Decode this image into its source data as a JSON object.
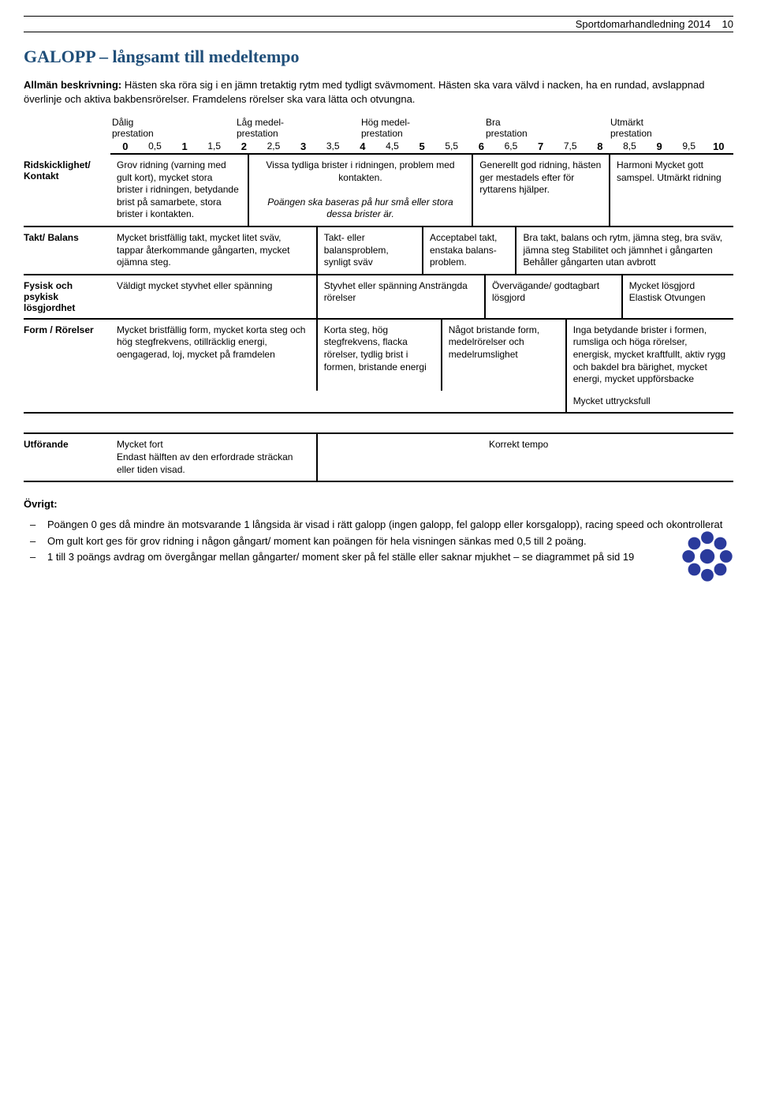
{
  "header": {
    "doc_title": "Sportdomarhandledning 2014",
    "page_num": "10"
  },
  "title": "GALOPP – långsamt till medeltempo",
  "intro": {
    "label": "Allmän beskrivning:",
    "text": " Hästen ska röra sig i en jämn tretaktig rytm med tydligt svävmoment. Hästen ska vara välvd i nacken, ha en rundad, avslappnad överlinje och aktiva bakbensrörelser. Framdelens rörelser ska vara lätta och otvungna."
  },
  "scale": {
    "headers": [
      {
        "title": "Dålig",
        "sub": "prestation"
      },
      {
        "title": "Låg medel-",
        "sub": "prestation"
      },
      {
        "title": "Hög medel-",
        "sub": "prestation"
      },
      {
        "title": "Bra",
        "sub": "prestation"
      },
      {
        "title": "Utmärkt",
        "sub": "prestation"
      }
    ],
    "numbers": [
      "0",
      "0,5",
      "1",
      "1,5",
      "2",
      "2,5",
      "3",
      "3,5",
      "4",
      "4,5",
      "5",
      "5,5",
      "6",
      "6,5",
      "7",
      "7,5",
      "8",
      "8,5",
      "9",
      "9,5",
      "10"
    ],
    "bold_indices": [
      0,
      2,
      4,
      6,
      8,
      10,
      12,
      14,
      16,
      18,
      20
    ]
  },
  "rows": {
    "r1": {
      "label": "Ridskicklighet/ Kontakt",
      "c1": "Grov ridning (varning med gult kort), mycket stora brister i ridningen, betydande brist på samarbete, stora brister i kontakten.",
      "c2a": "Vissa tydliga brister i ridningen, problem med kontakten.",
      "c2b": "Poängen ska baseras på hur små eller stora dessa brister är.",
      "c3": "Generellt god ridning, hästen ger mestadels efter för ryttarens hjälper.",
      "c4": "Harmoni Mycket gott samspel. Utmärkt ridning"
    },
    "r2": {
      "label": "Takt/ Balans",
      "c1": "Mycket bristfällig takt, mycket litet sväv, tappar återkommande gångarten, mycket ojämna steg.",
      "c2": "Takt- eller balansproblem, synligt sväv",
      "c3": "Acceptabel takt, enstaka balans-problem.",
      "c4": "Bra takt, balans och rytm, jämna steg, bra sväv, jämna steg Stabilitet och jämnhet i gångarten Behåller gångarten utan avbrott"
    },
    "r3": {
      "label": "Fysisk och psykisk lösgjordhet",
      "c1": "Väldigt mycket styvhet eller spänning",
      "c2": "Styvhet eller spänning Ansträngda rörelser",
      "c3": "Övervägande/ godtagbart lösgjord",
      "c4": "Mycket lösgjord Elastisk Otvungen"
    },
    "r4": {
      "label": "Form / Rörelser",
      "c1": "Mycket bristfällig form, mycket korta steg och hög stegfrekvens, otillräcklig energi, oengagerad, loj, mycket på framdelen",
      "c2": "Korta steg, hög stegfrekvens, flacka rörelser, tydlig brist i formen, bristande energi",
      "c3": "Något bristande form, medelrörelser och medelrumslighet",
      "c4": "Inga betydande brister i formen, rumsliga och höga rörelser, energisk, mycket kraftfullt, aktiv rygg och bakdel bra bärighet, mycket energi, mycket uppförsbacke",
      "c4b": "Mycket uttrycksfull"
    },
    "r5": {
      "label": "Utförande",
      "c1": "Mycket fort\nEndast hälften av den erfordrade sträckan eller tiden visad.",
      "c3": "Korrekt tempo"
    }
  },
  "ovrigt": {
    "title": "Övrigt:",
    "items": [
      "Poängen 0 ges då mindre än motsvarande 1 långsida är visad i rätt galopp (ingen galopp, fel galopp eller korsgalopp), racing speed och okontrollerat",
      "Om gult kort ges för grov ridning i någon gångart/ moment kan poängen för hela visningen sänkas med 0,5 till 2 poäng.",
      "1 till 3 poängs avdrag om övergångar mellan gångarter/ moment sker på fel ställe eller saknar mjukhet – se diagrammet på sid 19"
    ]
  },
  "colors": {
    "heading": "#1f4e79",
    "logo": "#2a3a9c"
  }
}
